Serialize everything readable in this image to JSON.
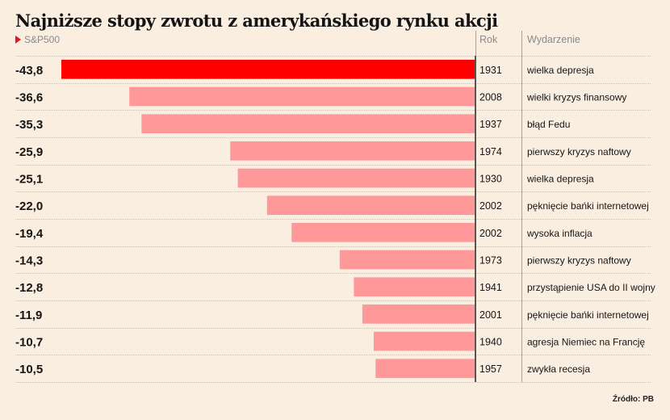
{
  "header": {
    "title": "Najniższe stopy zwrotu z amerykańskiego rynku akcji",
    "subtitle": "S&P500",
    "col_year": "Rok",
    "col_event": "Wydarzenie"
  },
  "source": "Źródło: PB",
  "colors": {
    "highlight": "#ff0000",
    "bar": "#ff9999",
    "background": "#faeee1"
  },
  "chart_data": {
    "type": "bar",
    "orientation": "horizontal",
    "title": "Najniższe stopy zwrotu z amerykańskiego rynku akcji",
    "subtitle": "S&P500",
    "xlim": [
      -43.8,
      0
    ],
    "grid": false,
    "rows": [
      {
        "value": "-43,8",
        "v": -43.8,
        "year": "1931",
        "event": "wielka depresja",
        "highlight": true
      },
      {
        "value": "-36,6",
        "v": -36.6,
        "year": "2008",
        "event": "wielki kryzys finansowy"
      },
      {
        "value": "-35,3",
        "v": -35.3,
        "year": "1937",
        "event": "błąd Fedu"
      },
      {
        "value": "-25,9",
        "v": -25.9,
        "year": "1974",
        "event": "pierwszy kryzys naftowy"
      },
      {
        "value": "-25,1",
        "v": -25.1,
        "year": "1930",
        "event": "wielka depresja"
      },
      {
        "value": "-22,0",
        "v": -22.0,
        "year": "2002",
        "event": "pęknięcie bańki internetowej"
      },
      {
        "value": "-19,4",
        "v": -19.4,
        "year": "2002",
        "event": "wysoka inflacja"
      },
      {
        "value": "-14,3",
        "v": -14.3,
        "year": "1973",
        "event": "pierwszy kryzys naftowy"
      },
      {
        "value": "-12,8",
        "v": -12.8,
        "year": "1941",
        "event": "przystąpienie USA do II wojny"
      },
      {
        "value": "-11,9",
        "v": -11.9,
        "year": "2001",
        "event": "pęknięcie bańki internetowej"
      },
      {
        "value": "-10,7",
        "v": -10.7,
        "year": "1940",
        "event": "agresja Niemiec na Francję"
      },
      {
        "value": "-10,5",
        "v": -10.5,
        "year": "1957",
        "event": "zwykła recesja"
      }
    ]
  }
}
